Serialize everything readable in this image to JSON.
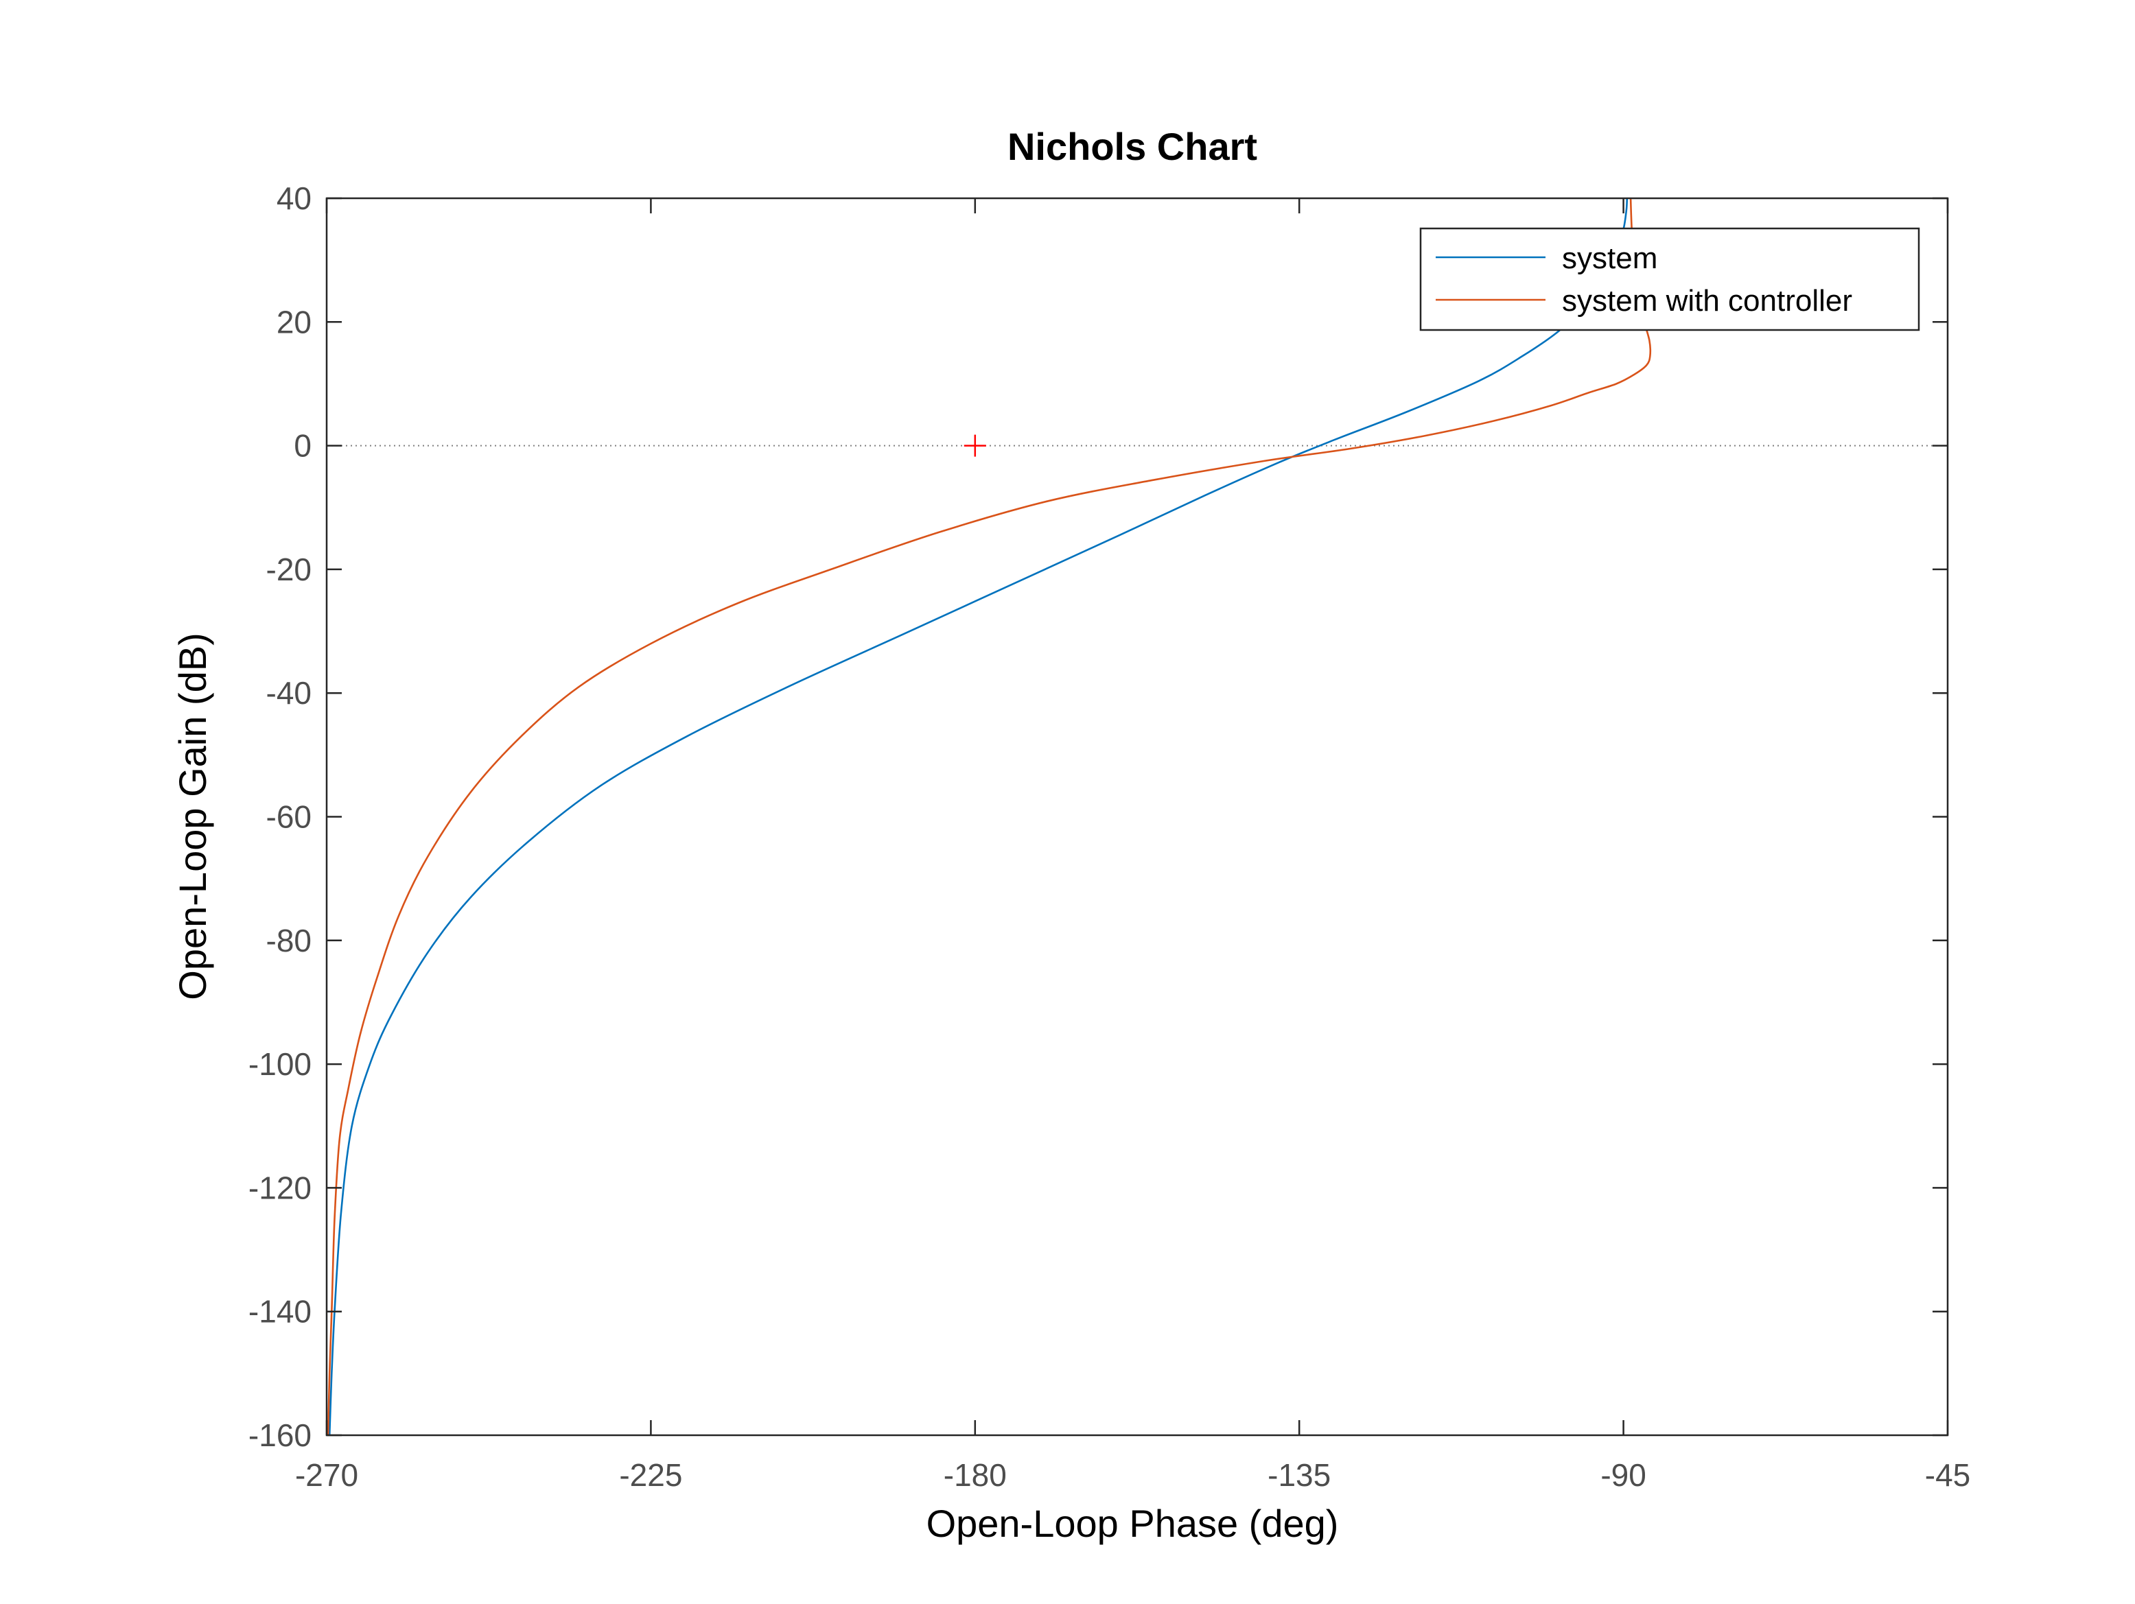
{
  "chart_data": {
    "type": "line",
    "title": "Nichols Chart",
    "xlabel": "Open-Loop Phase (deg)",
    "ylabel": "Open-Loop Gain (dB)",
    "xlim": [
      -270,
      -45
    ],
    "ylim": [
      -160,
      40
    ],
    "xticks": [
      -270,
      -225,
      -180,
      -135,
      -90,
      -45
    ],
    "yticks": [
      40,
      20,
      0,
      -20,
      -40,
      -60,
      -80,
      -100,
      -120,
      -140,
      -160
    ],
    "xtick_labels": [
      "-270",
      "-225",
      "-180",
      "-135",
      "-90",
      "-45"
    ],
    "ytick_labels": [
      "40",
      "20",
      "0",
      "-20",
      "-40",
      "-60",
      "-80",
      "-100",
      "-120",
      "-140",
      "-160"
    ],
    "grid": false,
    "reference_line": {
      "y": 0,
      "style": "dotted",
      "color": "#7f7f7f"
    },
    "critical_point": {
      "x": -180,
      "y": 0,
      "marker": "+",
      "color": "#ff0000"
    },
    "legend": {
      "position": "top-right"
    },
    "series": [
      {
        "name": "system",
        "color": "#0072bd",
        "x": [
          -269.6,
          -269.3,
          -268.9,
          -268.0,
          -266.5,
          -264.0,
          -261.0,
          -256.0,
          -250.0,
          -242.0,
          -232.0,
          -220.0,
          -206.0,
          -190.0,
          -175.0,
          -160.0,
          -148.0,
          -138.0,
          -130.0,
          -120.0,
          -110.0,
          -104.0,
          -99.0,
          -95.0,
          -92.5,
          -91.0,
          -90.0,
          -89.6,
          -89.5
        ],
        "y": [
          -160,
          -150,
          -140,
          -124,
          -110,
          -100,
          -92,
          -82,
          -73,
          -64,
          -55,
          -47,
          -39,
          -30.5,
          -22.5,
          -14.5,
          -8,
          -2.8,
          1,
          5.5,
          10.5,
          14.5,
          18.5,
          23,
          27.5,
          31.5,
          35,
          38,
          40
        ]
      },
      {
        "name": "system with controller",
        "color": "#d95319",
        "x": [
          -269.8,
          -269.6,
          -269.3,
          -268.9,
          -268.2,
          -267.0,
          -265.3,
          -263.0,
          -260.0,
          -256.0,
          -250.0,
          -243.0,
          -235.0,
          -225.0,
          -213.0,
          -200.0,
          -185.0,
          -170.0,
          -155.0,
          -140.0,
          -128.0,
          -118.0,
          -108.0,
          -100.0,
          -95.0,
          -91.0,
          -88.5,
          -86.8,
          -86.3,
          -86.4,
          -87.3,
          -88.3,
          -88.8,
          -89.0
        ],
        "y": [
          -160,
          -150,
          -140,
          -125,
          -112,
          -104,
          -95,
          -86,
          -76,
          -66.5,
          -56,
          -47,
          -39,
          -32,
          -25.5,
          -20,
          -14,
          -9,
          -5.5,
          -2.5,
          -0.5,
          1.5,
          4,
          6.5,
          8.5,
          10,
          11.5,
          13,
          14.5,
          17,
          21,
          28,
          34,
          40
        ]
      }
    ]
  }
}
